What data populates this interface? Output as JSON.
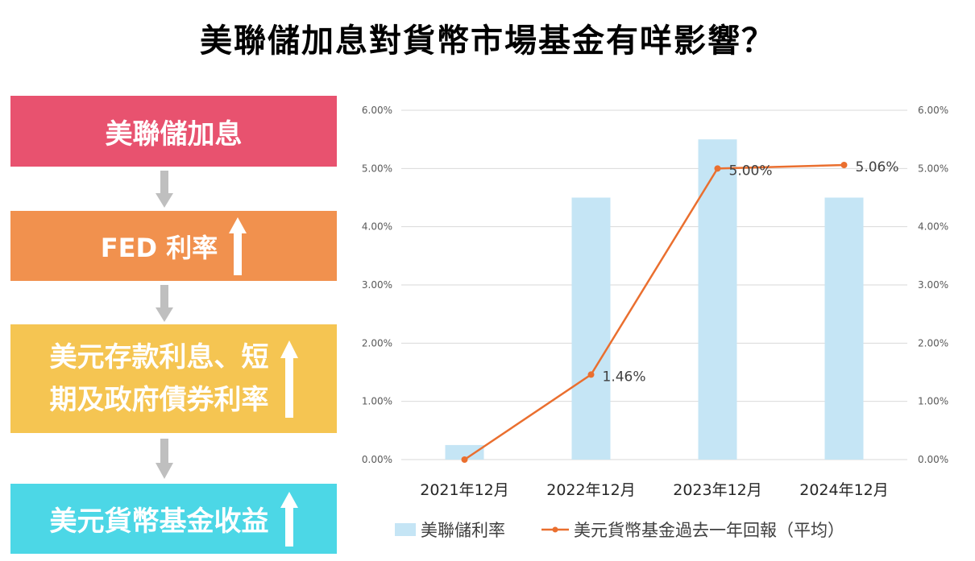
{
  "title": "美聯儲加息對貨幣市場基金有咩影響？",
  "flow": {
    "step1": "美聯儲加息",
    "step2": "FED 利率",
    "step3_line1": "美元存款利息、短",
    "step3_line2": "期及政府債券利率",
    "step4": "美元貨幣基金收益"
  },
  "colors": {
    "step1": "#e8526f",
    "step2": "#f1914e",
    "step3": "#f5c552",
    "step4": "#4cd7e6",
    "bar": "#c5e5f5",
    "line": "#ea6f2f",
    "arrow": "#bfbfbf"
  },
  "chart_data": {
    "type": "bar",
    "categories": [
      "2021年12月",
      "2022年12月",
      "2023年12月",
      "2024年12月"
    ],
    "series": [
      {
        "name": "美聯儲利率",
        "type": "bar",
        "values": [
          0.25,
          4.5,
          5.5,
          4.5
        ],
        "axis": "left"
      },
      {
        "name": "美元貨幣基金過去一年回報（平均）",
        "type": "line",
        "values": [
          0.0,
          1.46,
          5.0,
          5.06
        ],
        "axis": "right",
        "data_labels": [
          "",
          "1.46%",
          "5.00%",
          "5.06%"
        ]
      }
    ],
    "y_ticks": [
      "0.00%",
      "1.00%",
      "2.00%",
      "3.00%",
      "4.00%",
      "5.00%",
      "6.00%"
    ],
    "ylim": [
      0,
      6
    ],
    "y2lim": [
      0,
      6
    ],
    "grid": true,
    "legend": "bottom"
  }
}
